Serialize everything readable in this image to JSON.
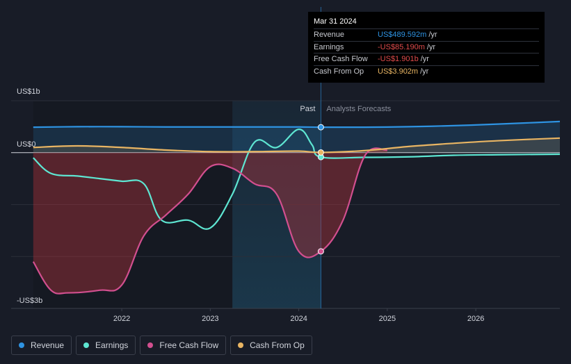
{
  "chart_data": {
    "type": "line",
    "y_axis_labels": [
      "US$1b",
      "US$0",
      "-US$3b"
    ],
    "x_tick_labels": [
      "2022",
      "2023",
      "2024",
      "2025",
      "2026"
    ],
    "x_ticks": [
      2022,
      2023,
      2024,
      2025,
      2026
    ],
    "past_label": "Past",
    "forecast_label": "Analysts Forecasts",
    "past_boundary": 2024.25,
    "highlight_start": 2023.25,
    "x_range": [
      2020.75,
      2026.95
    ],
    "y_range": [
      -3.0,
      1.0
    ],
    "series": [
      {
        "name": "Revenue",
        "color": "#2e93e2",
        "x": [
          2021.0,
          2021.5,
          2022.0,
          2022.5,
          2023.0,
          2023.5,
          2024.0,
          2024.25,
          2024.75,
          2025.25,
          2025.75,
          2026.25,
          2026.95
        ],
        "y": [
          0.49,
          0.5,
          0.5,
          0.495,
          0.495,
          0.495,
          0.495,
          0.49,
          0.49,
          0.5,
          0.52,
          0.55,
          0.6
        ]
      },
      {
        "name": "Earnings",
        "color": "#5ee6d2",
        "x": [
          2021.0,
          2021.2,
          2021.5,
          2021.75,
          2022.0,
          2022.25,
          2022.45,
          2022.75,
          2023.0,
          2023.25,
          2023.5,
          2023.75,
          2024.0,
          2024.15,
          2024.25,
          2024.75,
          2025.25,
          2025.75,
          2026.25,
          2026.95
        ],
        "y": [
          -0.1,
          -0.4,
          -0.45,
          -0.5,
          -0.55,
          -0.6,
          -1.3,
          -1.3,
          -1.45,
          -0.8,
          0.2,
          0.1,
          0.45,
          0.15,
          -0.085,
          -0.09,
          -0.08,
          -0.05,
          -0.04,
          -0.03
        ]
      },
      {
        "name": "Free Cash Flow",
        "color": "#d24f8f",
        "x": [
          2021.0,
          2021.2,
          2021.4,
          2021.75,
          2022.0,
          2022.25,
          2022.5,
          2022.75,
          2023.0,
          2023.25,
          2023.5,
          2023.75,
          2024.0,
          2024.25,
          2024.5,
          2024.75,
          2025.0
        ],
        "y": [
          -2.1,
          -2.65,
          -2.7,
          -2.65,
          -2.55,
          -1.6,
          -1.2,
          -0.8,
          -0.27,
          -0.3,
          -0.6,
          -0.8,
          -1.9,
          -1.901,
          -1.3,
          -0.05,
          0.05
        ]
      },
      {
        "name": "Cash From Op",
        "color": "#e9b563",
        "x": [
          2021.0,
          2021.5,
          2022.0,
          2022.5,
          2023.0,
          2023.5,
          2024.0,
          2024.25,
          2024.75,
          2025.25,
          2025.75,
          2026.25,
          2026.95
        ],
        "y": [
          0.1,
          0.13,
          0.1,
          0.05,
          0.02,
          0.02,
          0.03,
          0.004,
          0.04,
          0.12,
          0.18,
          0.23,
          0.28
        ]
      }
    ]
  },
  "tooltip": {
    "date": "Mar 31 2024",
    "rows": [
      {
        "label": "Revenue",
        "value": "US$489.592m",
        "unit": "/yr",
        "color": "#2e93e2"
      },
      {
        "label": "Earnings",
        "value": "-US$85.190m",
        "unit": "/yr",
        "color": "#e04b4b"
      },
      {
        "label": "Free Cash Flow",
        "value": "-US$1.901b",
        "unit": "/yr",
        "color": "#e04b4b"
      },
      {
        "label": "Cash From Op",
        "value": "US$3.902m",
        "unit": "/yr",
        "color": "#e9b563"
      }
    ]
  },
  "legend": [
    {
      "label": "Revenue",
      "color": "#2e93e2"
    },
    {
      "label": "Earnings",
      "color": "#5ee6d2"
    },
    {
      "label": "Free Cash Flow",
      "color": "#d24f8f"
    },
    {
      "label": "Cash From Op",
      "color": "#e9b563"
    }
  ]
}
